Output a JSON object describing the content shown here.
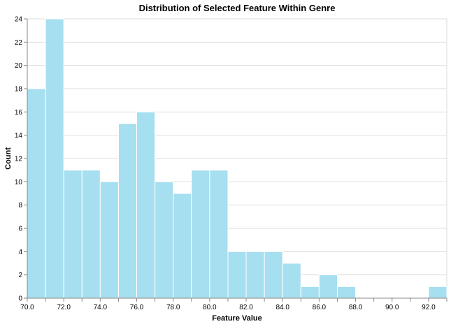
{
  "chart_data": {
    "type": "bar",
    "title": "Distribution of Selected Feature Within Genre",
    "xlabel": "Feature Value",
    "ylabel": "Count",
    "xlim": [
      70,
      93
    ],
    "ylim": [
      0,
      24
    ],
    "bin_width": 1,
    "bins": [
      {
        "x0": 70,
        "x1": 71,
        "count": 18
      },
      {
        "x0": 71,
        "x1": 72,
        "count": 24
      },
      {
        "x0": 72,
        "x1": 73,
        "count": 11
      },
      {
        "x0": 73,
        "x1": 74,
        "count": 11
      },
      {
        "x0": 74,
        "x1": 75,
        "count": 10
      },
      {
        "x0": 75,
        "x1": 76,
        "count": 15
      },
      {
        "x0": 76,
        "x1": 77,
        "count": 16
      },
      {
        "x0": 77,
        "x1": 78,
        "count": 10
      },
      {
        "x0": 78,
        "x1": 79,
        "count": 9
      },
      {
        "x0": 79,
        "x1": 80,
        "count": 11
      },
      {
        "x0": 80,
        "x1": 81,
        "count": 11
      },
      {
        "x0": 81,
        "x1": 82,
        "count": 4
      },
      {
        "x0": 82,
        "x1": 83,
        "count": 4
      },
      {
        "x0": 83,
        "x1": 84,
        "count": 4
      },
      {
        "x0": 84,
        "x1": 85,
        "count": 3
      },
      {
        "x0": 85,
        "x1": 86,
        "count": 1
      },
      {
        "x0": 86,
        "x1": 87,
        "count": 2
      },
      {
        "x0": 87,
        "x1": 88,
        "count": 1
      },
      {
        "x0": 92,
        "x1": 93,
        "count": 1
      }
    ],
    "x_ticks": [
      70,
      71,
      72,
      73,
      74,
      75,
      76,
      77,
      78,
      79,
      80,
      81,
      82,
      83,
      84,
      85,
      86,
      87,
      88,
      89,
      90,
      91,
      92,
      93
    ],
    "x_tick_labels": [
      "70.0",
      "72.0",
      "74.0",
      "76.0",
      "78.0",
      "80.0",
      "82.0",
      "84.0",
      "86.0",
      "88.0",
      "90.0",
      "92.0"
    ],
    "x_tick_label_values": [
      70,
      72,
      74,
      76,
      78,
      80,
      82,
      84,
      86,
      88,
      90,
      92
    ],
    "y_ticks": [
      0,
      2,
      4,
      6,
      8,
      10,
      12,
      14,
      16,
      18,
      20,
      22,
      24
    ],
    "y_tick_labels": [
      "0",
      "2",
      "4",
      "6",
      "8",
      "10",
      "12",
      "14",
      "16",
      "18",
      "20",
      "22",
      "24"
    ],
    "grid": true,
    "colors": {
      "bar": "#a6dff0",
      "bar_stroke": "#ffffff",
      "grid": "#dddddd",
      "axis": "#888888"
    }
  }
}
